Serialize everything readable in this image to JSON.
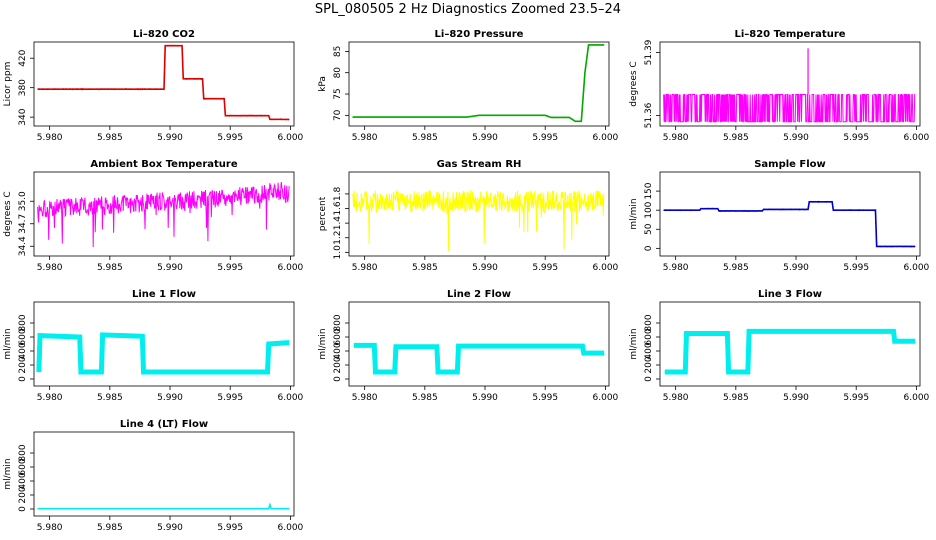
{
  "page_title": "SPL_080505  2 Hz Diagnostics Zoomed 23.5–24",
  "chart_data": [
    {
      "type": "line",
      "title": "Li–820 CO2",
      "ylabel": "Licor ppm",
      "color": "#dd0000",
      "xlim": [
        5.9787,
        6.0003
      ],
      "ylim": [
        328,
        442
      ],
      "yticks": [
        "340",
        "380",
        "420"
      ],
      "xticks": [
        "5.980",
        "5.985",
        "5.990",
        "5.995",
        "6.000"
      ],
      "x": [
        5.979,
        5.9895,
        5.9896,
        5.991,
        5.9911,
        5.9927,
        5.9928,
        5.9945,
        5.9946,
        5.9982,
        5.9983,
        5.9999
      ],
      "y": [
        378,
        378,
        437,
        437,
        392,
        392,
        365,
        365,
        342,
        342,
        337,
        337
      ]
    },
    {
      "type": "line",
      "title": "Li–820 Pressure",
      "ylabel": "kPa",
      "color": "#00aa00",
      "xlim": [
        5.9787,
        6.0003
      ],
      "ylim": [
        67.5,
        87.2
      ],
      "yticks": [
        "70",
        "75",
        "80",
        "85"
      ],
      "xticks": [
        "5.980",
        "5.985",
        "5.990",
        "5.995",
        "6.000"
      ],
      "x": [
        5.979,
        5.9885,
        5.9895,
        5.995,
        5.9955,
        5.997,
        5.9975,
        5.998,
        5.9983,
        5.9986,
        5.9999
      ],
      "y": [
        69.6,
        69.6,
        70.0,
        70.0,
        69.5,
        69.5,
        68.6,
        68.6,
        80.0,
        86.5,
        86.5
      ]
    },
    {
      "type": "line",
      "title": "Li–820 Temperature",
      "ylabel": "degrees C",
      "color": "#ff00ff",
      "xlim": [
        5.9787,
        6.0003
      ],
      "ylim": [
        51.355,
        51.395
      ],
      "yticks": [
        "51.36",
        "51.39"
      ],
      "xticks": [
        "5.980",
        "5.985",
        "5.990",
        "5.995",
        "6.000"
      ],
      "x": [
        5.979,
        5.9909,
        5.991,
        5.9911,
        5.9999
      ],
      "y": [
        51.37,
        51.37,
        51.392,
        51.37,
        51.37
      ]
    },
    {
      "type": "line",
      "title": "Ambient Box Temperature",
      "ylabel": "degrees C",
      "color": "#ff00ff",
      "xlim": [
        5.9787,
        6.0003
      ],
      "ylim": [
        34.27,
        35.39
      ],
      "yticks": [
        "34.4",
        "34.7",
        "35.0"
      ],
      "xticks": [
        "5.980",
        "5.985",
        "5.990",
        "5.995",
        "6.000"
      ],
      "x": [
        5.979,
        5.985,
        5.99,
        5.995,
        5.9999
      ],
      "y": [
        34.9,
        34.95,
        35.0,
        35.05,
        35.15
      ]
    },
    {
      "type": "line",
      "title": "Gas Stream RH",
      "ylabel": "percent",
      "color": "#ffff00",
      "xlim": [
        5.9787,
        6.0003
      ],
      "ylim": [
        0.95,
        2.1
      ],
      "yticks": [
        "1.0",
        "1.2",
        "1.4",
        "1.6",
        "1.8"
      ],
      "xticks": [
        "5.980",
        "5.985",
        "5.990",
        "5.995",
        "6.000"
      ],
      "x": [
        5.979,
        5.9999
      ],
      "y": [
        1.7,
        1.7
      ]
    },
    {
      "type": "line",
      "title": "Sample Flow",
      "ylabel": "ml/min",
      "color": "#0000cc",
      "xlim": [
        5.9787,
        6.0003
      ],
      "ylim": [
        -20,
        200
      ],
      "yticks": [
        "0",
        "50",
        "100",
        "150"
      ],
      "xticks": [
        "5.980",
        "5.985",
        "5.990",
        "5.995",
        "6.000"
      ],
      "x": [
        5.979,
        5.982,
        5.9821,
        5.9835,
        5.9836,
        5.9872,
        5.9873,
        5.991,
        5.9911,
        5.993,
        5.9931,
        5.9966,
        5.9967,
        5.9999
      ],
      "y": [
        100,
        100,
        104,
        104,
        98,
        98,
        102,
        102,
        122,
        122,
        100,
        100,
        5,
        5
      ]
    },
    {
      "type": "line",
      "title": "Line 1 Flow",
      "ylabel": "ml/min",
      "color": "#00eeee",
      "xlim": [
        5.9787,
        6.0003
      ],
      "ylim": [
        -100,
        1100
      ],
      "yticks": [
        "0",
        "200",
        "400",
        "600",
        "800"
      ],
      "xticks": [
        "5.980",
        "5.985",
        "5.990",
        "5.995",
        "6.000"
      ],
      "x": [
        5.9791,
        5.9792,
        5.9825,
        5.9826,
        5.9843,
        5.9844,
        5.9877,
        5.9878,
        5.9981,
        5.9982,
        5.9999
      ],
      "y": [
        100,
        620,
        600,
        100,
        100,
        630,
        610,
        100,
        100,
        500,
        520
      ]
    },
    {
      "type": "line",
      "title": "Line 2 Flow",
      "ylabel": "ml/min",
      "color": "#00eeee",
      "xlim": [
        5.9787,
        6.0003
      ],
      "ylim": [
        -100,
        1100
      ],
      "yticks": [
        "0",
        "200",
        "400",
        "600",
        "800"
      ],
      "xticks": [
        "5.980",
        "5.985",
        "5.990",
        "5.995",
        "6.000"
      ],
      "x": [
        5.9791,
        5.9808,
        5.9809,
        5.9825,
        5.9826,
        5.986,
        5.9861,
        5.9877,
        5.9878,
        5.9981,
        5.9982,
        5.9999
      ],
      "y": [
        480,
        480,
        100,
        100,
        460,
        460,
        100,
        100,
        470,
        470,
        370,
        370
      ]
    },
    {
      "type": "line",
      "title": "Line 3 Flow",
      "ylabel": "ml/min",
      "color": "#00eeee",
      "xlim": [
        5.9787,
        6.0003
      ],
      "ylim": [
        -100,
        1100
      ],
      "yticks": [
        "0",
        "200",
        "400",
        "600",
        "800"
      ],
      "xticks": [
        "5.980",
        "5.985",
        "5.990",
        "5.995",
        "6.000"
      ],
      "x": [
        5.9791,
        5.9792,
        5.9808,
        5.9809,
        5.9843,
        5.9844,
        5.986,
        5.9861,
        5.9981,
        5.9982,
        5.9999
      ],
      "y": [
        100,
        100,
        100,
        650,
        650,
        100,
        100,
        680,
        680,
        540,
        540
      ]
    },
    {
      "type": "line",
      "title": "Line 4 (LT) Flow",
      "ylabel": "ml/min",
      "color": "#00eeee",
      "xlim": [
        5.9787,
        6.0003
      ],
      "ylim": [
        -100,
        1100
      ],
      "yticks": [
        "0",
        "200",
        "400",
        "600",
        "800"
      ],
      "xticks": [
        "5.980",
        "5.985",
        "5.990",
        "5.995",
        "6.000"
      ],
      "x": [
        5.979,
        5.9982,
        5.9983,
        5.9984,
        5.9999
      ],
      "y": [
        5,
        5,
        60,
        5,
        5
      ]
    }
  ]
}
